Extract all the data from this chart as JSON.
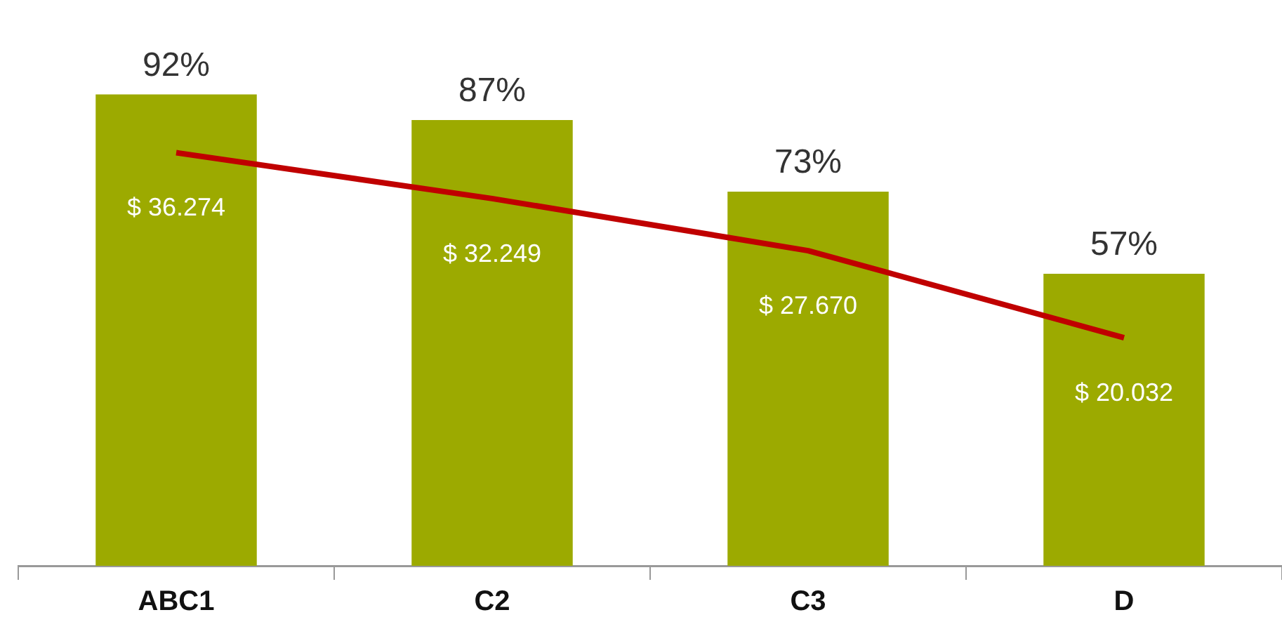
{
  "chart_data": {
    "type": "bar",
    "categories": [
      "ABC1",
      "C2",
      "C3",
      "D"
    ],
    "tick_labels": "x",
    "grid": false,
    "legend": false,
    "series": [
      {
        "type": "bar",
        "color": "#9caa00",
        "values": [
          92,
          87,
          73,
          57
        ],
        "value_labels": [
          "92%",
          "87%",
          "73%",
          "57%"
        ]
      },
      {
        "type": "line",
        "axis": "y2",
        "color": "#c00000",
        "marker": "none",
        "values": [
          36274,
          32249,
          27670,
          20032
        ],
        "value_labels": [
          "$ 36.274",
          "$ 32.249",
          "$ 27.670",
          "$ 20.032"
        ]
      }
    ]
  }
}
